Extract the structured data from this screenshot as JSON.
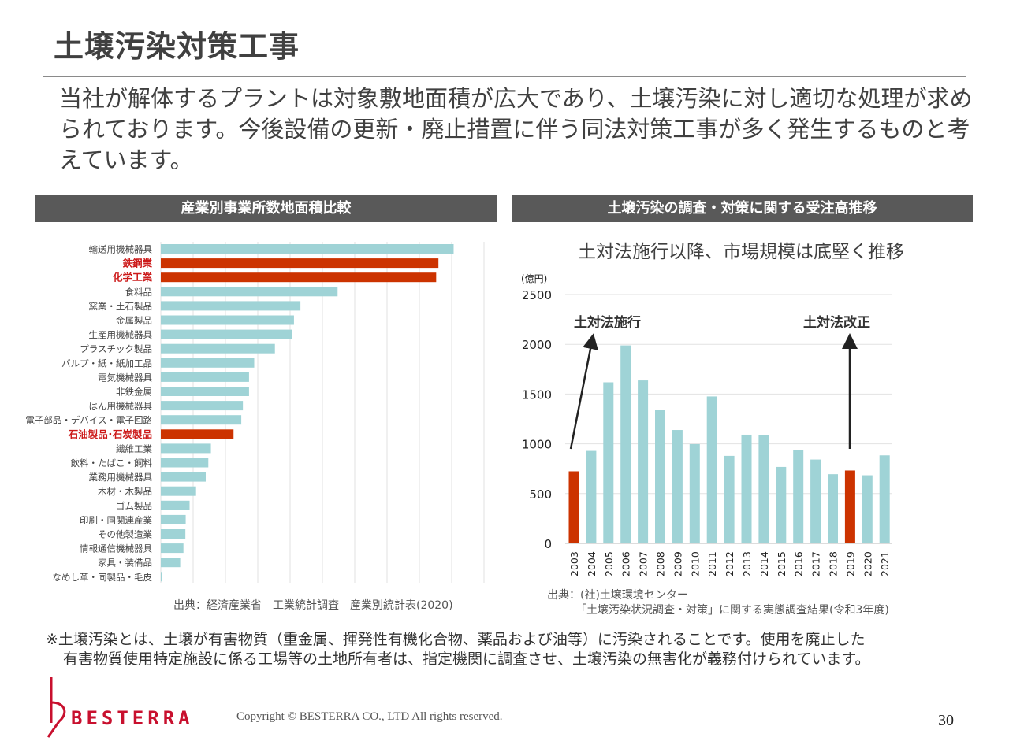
{
  "title": "土壌汚染対策工事",
  "intro": "当社が解体するプラントは対象敷地面積が広大であり、土壌汚染に対し適切な処理が求められております。今後設備の更新・廃止措置に伴う同法対策工事が多く発生するものと考えています。",
  "colors": {
    "teal": "#9fd3d6",
    "red": "#cc3300",
    "header": "#595959",
    "brand": "#c8102e"
  },
  "chart_data": [
    {
      "type": "bar",
      "orientation": "horizontal",
      "title": "産業別事業所数地面積比較",
      "categories": [
        "輸送用機械器具",
        "鉄鋼業",
        "化学工業",
        "食料品",
        "窯業・土石製品",
        "金属製品",
        "生産用機械器具",
        "プラスチック製品",
        "パルプ・紙・紙加工品",
        "電気機械器具",
        "非鉄金属",
        "はん用機械器具",
        "電子部品・デバイス・電子回路",
        "石油製品･石炭製品",
        "繊維工業",
        "飲料・たばこ・飼料",
        "業務用機械器具",
        "木材・木製品",
        "ゴム製品",
        "印刷・同関連産業",
        "その他製造業",
        "情報通信機械器具",
        "家具・装備品",
        "なめし革・同製品・毛皮"
      ],
      "values": [
        9.06,
        8.59,
        8.52,
        5.47,
        4.32,
        4.12,
        4.07,
        3.53,
        2.89,
        2.73,
        2.73,
        2.54,
        2.49,
        2.25,
        1.55,
        1.47,
        1.39,
        1.09,
        0.89,
        0.77,
        0.76,
        0.7,
        0.6,
        0.03
      ],
      "highlighted": [
        "鉄鋼業",
        "化学工業",
        "石油製品･石炭製品"
      ],
      "xlim": [
        0,
        10
      ],
      "grid": true,
      "source": "出典：経済産業省　工業統計調査　産業別統計表(2020)"
    },
    {
      "type": "bar",
      "title": "土壌汚染の調査・対策に関する受注高推移",
      "subtitle": "土対法施行以降、市場規模は底堅く推移",
      "ylabel": "(億円)",
      "categories": [
        "2003",
        "2004",
        "2005",
        "2006",
        "2007",
        "2008",
        "2009",
        "2010",
        "2011",
        "2012",
        "2013",
        "2014",
        "2015",
        "2016",
        "2017",
        "2018",
        "2019",
        "2020",
        "2021"
      ],
      "values": [
        724,
        929,
        1618,
        1989,
        1637,
        1342,
        1139,
        997,
        1476,
        879,
        1092,
        1084,
        768,
        939,
        842,
        695,
        732,
        684,
        884
      ],
      "highlighted": [
        "2003",
        "2019"
      ],
      "ylim": [
        0,
        2500
      ],
      "yticks": [
        "0",
        "500",
        "1000",
        "1500",
        "2000",
        "2500"
      ],
      "grid": true,
      "annotations": [
        {
          "text": "土対法施行",
          "year": "2003"
        },
        {
          "text": "土対法改正",
          "year": "2019"
        }
      ],
      "source_line1": "出典：(社)土壌環境センター",
      "source_line2": "「土壌汚染状況調査・対策」に関する実態調査結果(令和3年度)"
    }
  ],
  "note_line1": "※土壌汚染とは、土壌が有害物質（重金属、揮発性有機化合物、薬品および油等）に汚染されることです。使用を廃止した",
  "note_line2": "有害物質使用特定施設に係る工場等の土地所有者は、指定機関に調査させ、土壌汚染の無害化が義務付けられています。",
  "footer": {
    "logo": "BESTERRA",
    "copyright": "Copyright © BESTERRA CO., LTD All rights reserved.",
    "page": "30"
  }
}
